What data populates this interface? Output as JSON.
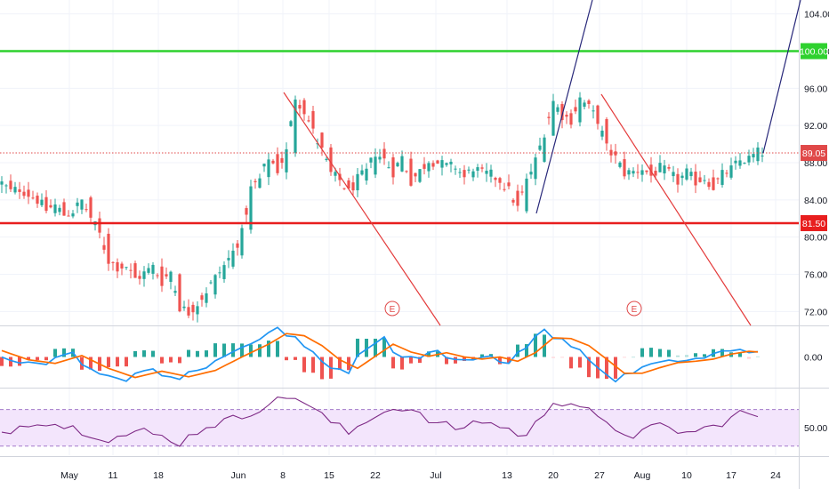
{
  "chart_data": [
    {
      "type": "candlestick",
      "panel": "price",
      "ylim": [
        70.5,
        105.5
      ],
      "y_ticks": [
        "104.00",
        "100.00",
        "96.00",
        "92.00",
        "88.00",
        "84.00",
        "80.00",
        "76.00",
        "72.00"
      ],
      "x_ticks": [
        "May",
        "11",
        "18",
        "Jun",
        "8",
        "15",
        "22",
        "Jul",
        "13",
        "20",
        "27",
        "Aug",
        "10",
        "17",
        "24"
      ],
      "close_path": [
        [
          0,
          85.8
        ],
        [
          1,
          84.9
        ],
        [
          2,
          85.2
        ],
        [
          3,
          84.6
        ],
        [
          4,
          84.0
        ],
        [
          5,
          82.9
        ],
        [
          6,
          83.4
        ],
        [
          7,
          82.4
        ],
        [
          8,
          82.8
        ],
        [
          9,
          83.9
        ],
        [
          10,
          82.1
        ],
        [
          11,
          80.3
        ],
        [
          12,
          77.5
        ],
        [
          13,
          76.8
        ],
        [
          14,
          76.9
        ],
        [
          15,
          75.5
        ],
        [
          16,
          76.1
        ],
        [
          17,
          76.8
        ],
        [
          18,
          75.2
        ],
        [
          19,
          76.3
        ],
        [
          20,
          72.5
        ],
        [
          21,
          71.9
        ],
        [
          22,
          72.9
        ],
        [
          23,
          74.2
        ],
        [
          24,
          75.6
        ],
        [
          25,
          76.9
        ],
        [
          26,
          78.4
        ],
        [
          27,
          80.4
        ],
        [
          28,
          85.2
        ],
        [
          29,
          86.2
        ],
        [
          30,
          88.6
        ],
        [
          31,
          87.2
        ],
        [
          32,
          89.2
        ],
        [
          33,
          95.1
        ],
        [
          34,
          93.6
        ],
        [
          35,
          91.3
        ],
        [
          36,
          89.3
        ],
        [
          37,
          86.8
        ],
        [
          38,
          86.1
        ],
        [
          39,
          84.8
        ],
        [
          40,
          86.2
        ],
        [
          41,
          87.0
        ],
        [
          42,
          89.1
        ],
        [
          43,
          88.3
        ],
        [
          44,
          87.0
        ],
        [
          45,
          88.6
        ],
        [
          46,
          86.0
        ],
        [
          47,
          87.1
        ],
        [
          48,
          88.3
        ],
        [
          49,
          88.0
        ],
        [
          50,
          87.6
        ],
        [
          51,
          87.6
        ],
        [
          52,
          86.4
        ],
        [
          53,
          87.5
        ],
        [
          54,
          86.8
        ],
        [
          55,
          86.7
        ],
        [
          56,
          86.1
        ],
        [
          57,
          85.0
        ],
        [
          58,
          83.1
        ],
        [
          59,
          86.0
        ],
        [
          60,
          88.2
        ],
        [
          61,
          91.3
        ],
        [
          62,
          94.6
        ],
        [
          63,
          93.1
        ],
        [
          64,
          92.6
        ],
        [
          65,
          94.9
        ],
        [
          66,
          93.9
        ],
        [
          67,
          92.6
        ],
        [
          68,
          89.6
        ],
        [
          69,
          88.5
        ],
        [
          70,
          86.9
        ],
        [
          71,
          87.0
        ],
        [
          72,
          87.4
        ],
        [
          73,
          86.6
        ],
        [
          74,
          87.4
        ],
        [
          75,
          86.9
        ],
        [
          76,
          86.0
        ],
        [
          77,
          86.9
        ],
        [
          78,
          86.0
        ],
        [
          79,
          86.4
        ],
        [
          80,
          85.4
        ],
        [
          81,
          86.7
        ],
        [
          82,
          87.3
        ],
        [
          83,
          88.2
        ],
        [
          84,
          88.4
        ],
        [
          85,
          89.1
        ]
      ],
      "horizontal_lines": [
        {
          "value": "100.00",
          "color": "#2ed12e",
          "style": "solid",
          "badge": "100.00"
        },
        {
          "value": "89.05",
          "color": "#e04848",
          "style": "dotted",
          "badge": "89.05"
        },
        {
          "value": "81.50",
          "color": "#e81e1e",
          "style": "solid",
          "badge": "81.50"
        }
      ],
      "trend_lines": [
        {
          "color": "#e43c3c",
          "points": [
            [
              319,
              104
            ],
            [
              495,
              366
            ]
          ]
        },
        {
          "color": "#e43c3c",
          "points": [
            [
              676,
              106
            ],
            [
              844,
              366
            ]
          ]
        },
        {
          "color": "#28287a",
          "points": [
            [
              603,
              240
            ],
            [
              666,
              0
            ]
          ]
        },
        {
          "color": "#28287a",
          "points": [
            [
              858,
              172
            ],
            [
              900,
              0
            ]
          ]
        }
      ],
      "earnings_markers": [
        "E",
        "E"
      ],
      "colors": {
        "up": "#26a69a",
        "down": "#ef5350"
      }
    },
    {
      "type": "line",
      "panel": "macd",
      "y_ticks": [
        "0.00"
      ],
      "series": [
        {
          "color": "#2196f3"
        },
        {
          "color": "#ff6d00"
        }
      ],
      "histogram": true,
      "signal_path": [
        [
          0,
          0.9
        ],
        [
          3,
          -0.4
        ],
        [
          6,
          -0.9
        ],
        [
          9,
          0.2
        ],
        [
          12,
          -1.6
        ],
        [
          15,
          -2.9
        ],
        [
          18,
          -2.0
        ],
        [
          21,
          -2.8
        ],
        [
          24,
          -1.9
        ],
        [
          27,
          0.0
        ],
        [
          30,
          1.8
        ],
        [
          32,
          3.3
        ],
        [
          34,
          3.0
        ],
        [
          36,
          1.6
        ],
        [
          38,
          -0.4
        ],
        [
          40,
          -1.6
        ],
        [
          42,
          0.1
        ],
        [
          44,
          1.8
        ],
        [
          46,
          0.7
        ],
        [
          48,
          0.1
        ],
        [
          50,
          0.6
        ],
        [
          52,
          0.0
        ],
        [
          54,
          -0.3
        ],
        [
          56,
          0.0
        ],
        [
          58,
          -0.6
        ],
        [
          60,
          0.6
        ],
        [
          62,
          2.7
        ],
        [
          64,
          2.6
        ],
        [
          66,
          1.6
        ],
        [
          68,
          -0.3
        ],
        [
          70,
          -2.3
        ],
        [
          72,
          -2.3
        ],
        [
          74,
          -1.5
        ],
        [
          76,
          -0.8
        ],
        [
          78,
          -0.6
        ],
        [
          80,
          -0.3
        ],
        [
          82,
          0.4
        ],
        [
          84,
          0.8
        ],
        [
          85,
          0.7
        ]
      ]
    },
    {
      "type": "line",
      "panel": "rsi",
      "y_ticks": [
        "50.00"
      ],
      "band": [
        30,
        70
      ],
      "series": [
        {
          "color": "#7e2a86"
        }
      ],
      "rsi_path": [
        [
          0,
          45
        ],
        [
          4,
          58
        ],
        [
          8,
          50
        ],
        [
          12,
          38
        ],
        [
          16,
          46
        ],
        [
          20,
          34
        ],
        [
          23,
          52
        ],
        [
          27,
          62
        ],
        [
          30,
          77
        ],
        [
          33,
          85
        ],
        [
          36,
          63
        ],
        [
          39,
          44
        ],
        [
          42,
          65
        ],
        [
          45,
          73
        ],
        [
          48,
          58
        ],
        [
          51,
          49
        ],
        [
          54,
          58
        ],
        [
          57,
          48
        ],
        [
          59,
          40
        ],
        [
          62,
          80
        ],
        [
          65,
          75
        ],
        [
          68,
          52
        ],
        [
          71,
          42
        ],
        [
          74,
          52
        ],
        [
          77,
          44
        ],
        [
          80,
          51
        ],
        [
          83,
          66
        ],
        [
          85,
          63
        ]
      ]
    }
  ]
}
